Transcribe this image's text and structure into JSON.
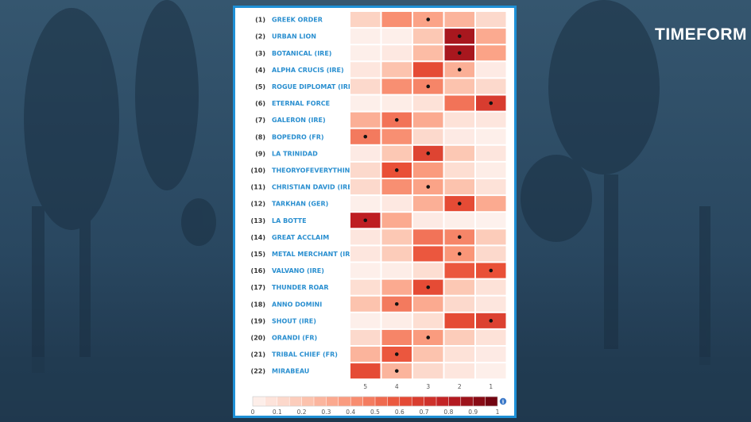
{
  "brand": {
    "logo": "TIMEFORM"
  },
  "colors": {
    "background": "#2b4a63",
    "panel_border": "#1e90d6",
    "name_text": "#2a8fd0",
    "heat_low": "#fdf3f0",
    "heat_high": "#67000d"
  },
  "chart_data": {
    "type": "heatmap",
    "title": "",
    "x_labels": [
      "5",
      "4",
      "3",
      "2",
      "1"
    ],
    "rows": [
      {
        "num": "(1)",
        "name": "GREEK ORDER",
        "values": [
          0.15,
          0.42,
          0.35,
          0.28,
          0.12
        ],
        "marker": "3"
      },
      {
        "num": "(2)",
        "name": "URBAN LION",
        "values": [
          0.02,
          0.02,
          0.2,
          0.85,
          0.32
        ],
        "marker": "2"
      },
      {
        "num": "(3)",
        "name": "BOTANICAL (IRE)",
        "values": [
          0.02,
          0.05,
          0.25,
          0.85,
          0.35
        ],
        "marker": "2"
      },
      {
        "num": "(4)",
        "name": "ALPHA CRUCIS (IRE)",
        "values": [
          0.06,
          0.22,
          0.62,
          0.3,
          0.04
        ],
        "marker": "2"
      },
      {
        "num": "(5)",
        "name": "ROGUE DIPLOMAT (IRE)",
        "values": [
          0.12,
          0.42,
          0.45,
          0.22,
          0.12
        ],
        "marker": "3"
      },
      {
        "num": "(6)",
        "name": "ETERNAL FORCE",
        "values": [
          0.02,
          0.03,
          0.08,
          0.5,
          0.68
        ],
        "marker": "1"
      },
      {
        "num": "(7)",
        "name": "GALERON (IRE)",
        "values": [
          0.3,
          0.5,
          0.32,
          0.08,
          0.06
        ],
        "marker": "4"
      },
      {
        "num": "(8)",
        "name": "BOPEDRO (FR)",
        "values": [
          0.48,
          0.42,
          0.12,
          0.04,
          0.02
        ],
        "marker": "5"
      },
      {
        "num": "(9)",
        "name": "LA TRINIDAD",
        "values": [
          0.04,
          0.2,
          0.65,
          0.2,
          0.06
        ],
        "marker": "3"
      },
      {
        "num": "(10)",
        "name": "THEORYOFEVERYTHING",
        "values": [
          0.12,
          0.6,
          0.38,
          0.1,
          0.03
        ],
        "marker": "4"
      },
      {
        "num": "(11)",
        "name": "CHRISTIAN DAVID (IRE)",
        "values": [
          0.12,
          0.42,
          0.35,
          0.22,
          0.08
        ],
        "marker": "3"
      },
      {
        "num": "(12)",
        "name": "TARKHAN (GER)",
        "values": [
          0.02,
          0.05,
          0.3,
          0.62,
          0.32
        ],
        "marker": "2"
      },
      {
        "num": "(13)",
        "name": "LA BOTTE",
        "values": [
          0.8,
          0.32,
          0.04,
          0.02,
          0.01
        ],
        "marker": "5"
      },
      {
        "num": "(14)",
        "name": "GREAT ACCLAIM",
        "values": [
          0.06,
          0.2,
          0.5,
          0.45,
          0.18
        ],
        "marker": "2"
      },
      {
        "num": "(15)",
        "name": "METAL MERCHANT (IRE)",
        "values": [
          0.06,
          0.18,
          0.58,
          0.4,
          0.12
        ],
        "marker": "2"
      },
      {
        "num": "(16)",
        "name": "VALVANO (IRE)",
        "values": [
          0.02,
          0.03,
          0.1,
          0.58,
          0.6
        ],
        "marker": "1"
      },
      {
        "num": "(17)",
        "name": "THUNDER ROAR",
        "values": [
          0.1,
          0.32,
          0.62,
          0.2,
          0.08
        ],
        "marker": "3"
      },
      {
        "num": "(18)",
        "name": "ANNO DOMINI",
        "values": [
          0.22,
          0.48,
          0.32,
          0.12,
          0.06
        ],
        "marker": "4"
      },
      {
        "num": "(19)",
        "name": "SHOUT (IRE)",
        "values": [
          0.02,
          0.03,
          0.1,
          0.62,
          0.66
        ],
        "marker": "1"
      },
      {
        "num": "(20)",
        "name": "ORANDI (FR)",
        "values": [
          0.12,
          0.45,
          0.38,
          0.18,
          0.08
        ],
        "marker": "3"
      },
      {
        "num": "(21)",
        "name": "TRIBAL CHIEF (FR)",
        "values": [
          0.28,
          0.58,
          0.22,
          0.08,
          0.04
        ],
        "marker": "4"
      },
      {
        "num": "(22)",
        "name": "MIRABEAU",
        "values": [
          0.62,
          0.28,
          0.12,
          0.06,
          0.02
        ],
        "marker": "4"
      }
    ],
    "colorbar": {
      "min": 0,
      "max": 1,
      "ticks": [
        "0",
        "0.1",
        "0.2",
        "0.3",
        "0.4",
        "0.5",
        "0.6",
        "0.7",
        "0.8",
        "0.9",
        "1"
      ]
    }
  }
}
